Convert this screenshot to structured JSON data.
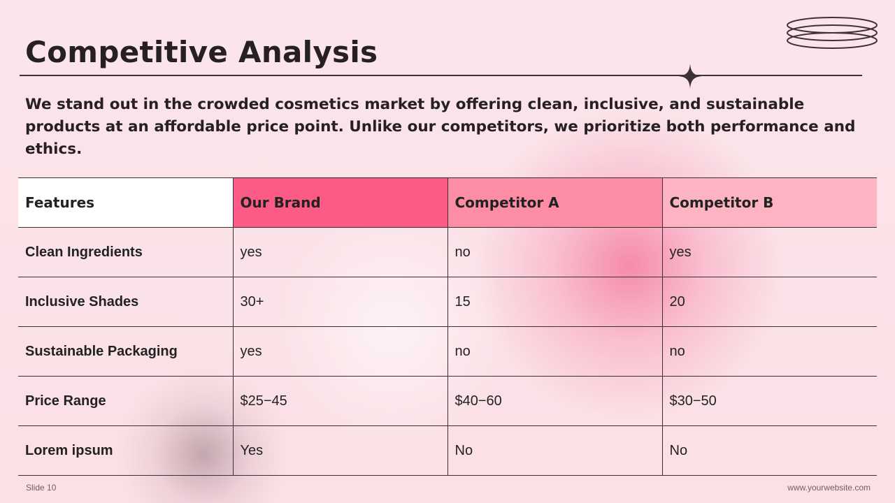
{
  "slide": {
    "title": "Competitive Analysis",
    "intro": "We stand out in the crowded cosmetics market by offering clean, inclusive, and sustainable products at an affordable price point. Unlike our competitors, we prioritize both performance and ethics.",
    "footer_left": "Slide 10",
    "footer_right": "www.yourwebsite.com"
  },
  "decor": {
    "sparkle_icon": "four-point-star",
    "rings_icon": "stacked-ellipses",
    "accent_colors": [
      "#fb5b84",
      "#fd8ca5",
      "#fdb3c2"
    ]
  },
  "table": {
    "headers": [
      "Features",
      "Our Brand",
      "Competitor A",
      "Competitor B"
    ],
    "rows": [
      [
        "Clean Ingredients",
        "yes",
        "no",
        "yes"
      ],
      [
        "Inclusive Shades",
        "30+",
        "15",
        "20"
      ],
      [
        "Sustainable Packaging",
        "yes",
        "no",
        "no"
      ],
      [
        "Price Range",
        "$25−45",
        "$40−60",
        "$30−50"
      ],
      [
        "Lorem ipsum",
        "Yes",
        "No",
        "No"
      ]
    ]
  }
}
